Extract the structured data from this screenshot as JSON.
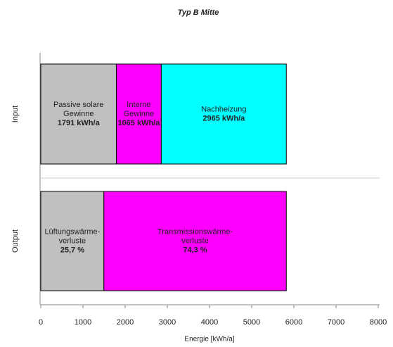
{
  "chart_data": {
    "type": "stacked-barh",
    "title": "Typ B Mitte",
    "x_label": "Energie [kWh/a]",
    "categories": [
      "Input",
      "Output"
    ],
    "series": [
      {
        "name": "Passive solare\nGewinne",
        "color": "#c0c0c0",
        "values": [
          1791,
          null
        ],
        "value_labels": [
          "1791 kWh/a",
          null
        ]
      },
      {
        "name": "Interne\nGewinne",
        "color": "#ff00ff",
        "values": [
          1065,
          null
        ],
        "value_labels": [
          "1065 kWh/a",
          null
        ]
      },
      {
        "name": "Nachheizung",
        "color": "#00ffff",
        "values": [
          2965,
          null
        ],
        "value_labels": [
          "2965 kWh/a",
          null
        ]
      },
      {
        "name": "Lüftungswärme-\nverluste",
        "color": "#c0c0c0",
        "values": [
          null,
          1496
        ],
        "value_labels": [
          null,
          "25,7 %"
        ]
      },
      {
        "name": "Transmissionswärme-\nverluste",
        "color": "#ff00ff",
        "values": [
          null,
          4325
        ],
        "value_labels": [
          null,
          "74,3 %"
        ]
      }
    ],
    "xlim": [
      0,
      8000
    ],
    "xticks": [
      0,
      1000,
      2000,
      3000,
      4000,
      5000,
      6000,
      7000,
      8000
    ]
  }
}
